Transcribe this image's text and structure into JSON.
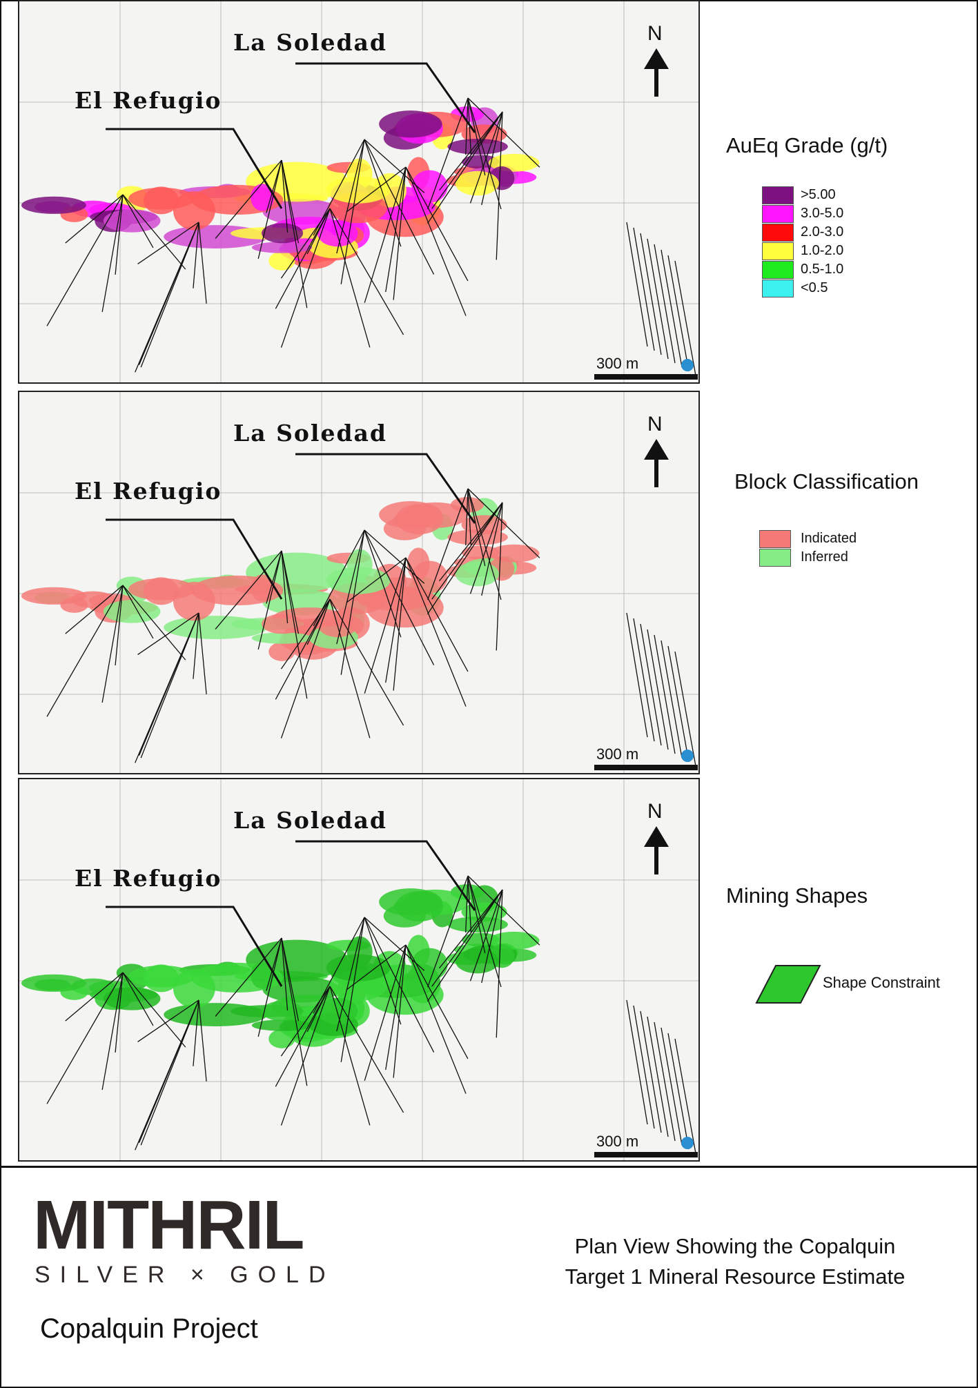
{
  "panels": [
    {
      "labels": {
        "la_soledad": "La Soledad",
        "el_refugio": "El Refugio",
        "north": "N",
        "scale": "300 m"
      },
      "legend": {
        "title": "AuEq Grade (g/t)",
        "items": [
          {
            "label": ">5.00",
            "color": "#7d117f"
          },
          {
            "label": "3.0-5.0",
            "color": "#ff14ff"
          },
          {
            "label": "2.0-3.0",
            "color": "#ff0a0a"
          },
          {
            "label": "1.0-2.0",
            "color": "#ffff3c"
          },
          {
            "label": "0.5-1.0",
            "color": "#1eeb1e"
          },
          {
            "label": "<0.5",
            "color": "#3cf0f0"
          }
        ]
      }
    },
    {
      "labels": {
        "la_soledad": "La Soledad",
        "el_refugio": "El Refugio",
        "north": "N",
        "scale": "300 m"
      },
      "legend": {
        "title": "Block Classification",
        "items": [
          {
            "label": "Indicated",
            "color": "#f47a78"
          },
          {
            "label": "Inferred",
            "color": "#86ec86"
          }
        ]
      }
    },
    {
      "labels": {
        "la_soledad": "La Soledad",
        "el_refugio": "El Refugio",
        "north": "N",
        "scale": "300 m"
      },
      "legend": {
        "title": "Mining Shapes",
        "items": [
          {
            "label": "Shape Constraint",
            "color": "#2ec82e"
          }
        ]
      }
    }
  ],
  "footer": {
    "logo": "MITHRIL",
    "tagline": "SILVER × GOLD",
    "project": "Copalquin Project",
    "caption": [
      "Plan View Showing the Copalquin",
      "Target 1 Mineral Resource Estimate"
    ]
  }
}
